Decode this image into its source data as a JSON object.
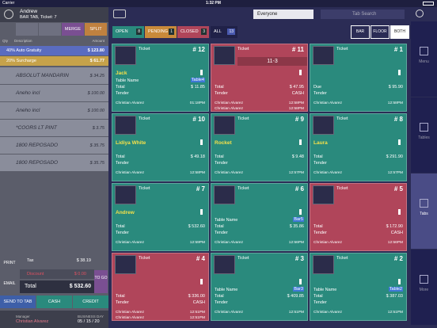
{
  "status_bar": {
    "carrier": "Carrier",
    "time": "1:32 PM"
  },
  "order": {
    "customer": "Andrew",
    "subtitle": "BAR TAB, Ticket: 7",
    "buttons": [
      "MERGE",
      "SPLIT"
    ],
    "columns": [
      "Qty",
      "Description",
      "Amount"
    ],
    "charges": [
      {
        "description": "40% Auto Gratuity",
        "amount": "$ 123.80"
      },
      {
        "description": "20% Surcharge",
        "amount": "$ 61.77"
      }
    ],
    "items": [
      {
        "description": "ABSOLUT MANDARIN",
        "amount": "$ 34.25"
      },
      {
        "description": "Aneho incl",
        "amount": "$ 100.00"
      },
      {
        "description": "Aneho incl",
        "amount": "$ 100.00"
      },
      {
        "description": "*COORS LT PINT",
        "amount": "$ 3.75"
      },
      {
        "description": "1800 REPOSADO",
        "amount": "$ 35.75"
      },
      {
        "description": "1800 REPOSADO",
        "amount": "$ 35.75"
      }
    ],
    "tax_label": "Tax",
    "tax": "$ 38.19",
    "discount_label": "Discount",
    "discount": "$ 0.00",
    "total_label": "Total",
    "total": "$ 532.60",
    "print": "PRINT",
    "email": "EMAIL",
    "to_go": "TO GO",
    "actions": [
      "SEND TO TAB",
      "CASH",
      "CREDIT"
    ],
    "manager_label": "Manager",
    "manager": "Christian Alvarez",
    "business_day_label": "BUSINESS DAY",
    "business_day": "05 / 15 / 20"
  },
  "toolbar": {
    "filter": "Everyone",
    "search": "Tab Search"
  },
  "filters": [
    {
      "label": "OPEN",
      "count": "8",
      "color": "#2a8a7d"
    },
    {
      "label": "PENDING",
      "count": "1",
      "color": "#c98a3a"
    },
    {
      "label": "CLOSED",
      "count": "3",
      "color": "#b0455a"
    }
  ],
  "all": {
    "label": "ALL",
    "count": "13"
  },
  "views": [
    "BAR",
    "FLOOR",
    "BOTH"
  ],
  "tickets": [
    {
      "label": "Ticket",
      "number": "# 12",
      "name": "Jack",
      "table_label": "Table Name",
      "table": "Table4",
      "total_label": "Total",
      "total": "$ 11.85",
      "tender_label": "Tender",
      "servers": [
        {
          "name": "Christian Alvarez",
          "time": "01:18PM"
        }
      ],
      "color": "#2a8a7d"
    },
    {
      "label": "Ticket",
      "number": "# 11",
      "banner": "11-3",
      "total_label": "Total",
      "total": "$ 47.95",
      "tender_label": "Tender",
      "tender": "CASH",
      "servers": [
        {
          "name": "Christian Alvarez",
          "time": "12:58PM"
        },
        {
          "name": "Christian Alvarez",
          "time": "12:58PM"
        }
      ],
      "color": "#b0455a"
    },
    {
      "label": "Ticket",
      "number": "# 1",
      "total_label": "Due",
      "total": "$ 95.90",
      "tender_label": "Tender",
      "servers": [
        {
          "name": "Christian Alvarez",
          "time": "12:58PM"
        }
      ],
      "color": "#2a8a7d"
    },
    {
      "label": "Ticket",
      "number": "# 10",
      "name": "Lidiya White",
      "total_label": "Total",
      "total": "$ 49.18",
      "tender_label": "Tender",
      "servers": [
        {
          "name": "Christian Alvarez",
          "time": "12:58PM"
        }
      ],
      "color": "#2a8a7d"
    },
    {
      "label": "Ticket",
      "number": "# 9",
      "name": "Rocket",
      "total_label": "Total",
      "total": "$ 9.48",
      "tender_label": "Tender",
      "servers": [
        {
          "name": "Christian Alvarez",
          "time": "12:57PM"
        }
      ],
      "color": "#2a8a7d"
    },
    {
      "label": "Ticket",
      "number": "# 8",
      "name": "Laura",
      "total_label": "Total",
      "total": "$ 291.90",
      "tender_label": "Tender",
      "servers": [
        {
          "name": "Christian Alvarez",
          "time": "12:57PM"
        }
      ],
      "color": "#2a8a7d"
    },
    {
      "label": "Ticket",
      "number": "# 7",
      "name": "Andrew",
      "total_label": "Total",
      "total": "$ 532.60",
      "tender_label": "Tender",
      "servers": [
        {
          "name": "Christian Alvarez",
          "time": "12:59PM"
        }
      ],
      "color": "#2a8a7d"
    },
    {
      "label": "Ticket",
      "number": "# 6",
      "table_label": "Table Name",
      "table": "Bar5",
      "total_label": "Total",
      "total": "$ 35.86",
      "tender_label": "Tender",
      "servers": [
        {
          "name": "Christian Alvarez",
          "time": "12:56PM"
        }
      ],
      "color": "#2a8a7d"
    },
    {
      "label": "Ticket",
      "number": "# 5",
      "total_label": "Total",
      "total": "$ 172.90",
      "tender_label": "Tender",
      "tender": "CASH",
      "servers": [
        {
          "name": "Christian Alvarez",
          "time": "12:56PM"
        }
      ],
      "color": "#b0455a"
    },
    {
      "label": "Ticket",
      "number": "# 4",
      "total_label": "Total",
      "total": "$ 336.00",
      "tender_label": "Tender",
      "tender": "CASH",
      "servers": [
        {
          "name": "Christian Alvarez",
          "time": "12:51PM"
        },
        {
          "name": "Christian Alvarez",
          "time": "12:51PM"
        }
      ],
      "color": "#b0455a"
    },
    {
      "label": "Ticket",
      "number": "# 3",
      "table_label": "Table Name",
      "table": "Bar3",
      "total_label": "Total",
      "total": "$ 409.85",
      "tender_label": "Tender",
      "servers": [
        {
          "name": "Christian Alvarez",
          "time": "12:51PM"
        }
      ],
      "color": "#2a8a7d"
    },
    {
      "label": "Ticket",
      "number": "# 2",
      "table_label": "Table Name",
      "table": "Table2",
      "total_label": "Total",
      "total": "$ 387.03",
      "tender_label": "Tender",
      "servers": [
        {
          "name": "Christian Alvarez",
          "time": "12:51PM"
        }
      ],
      "color": "#2a8a7d"
    }
  ],
  "nav": [
    "Menu",
    "Tables",
    "Tabs",
    "More"
  ]
}
